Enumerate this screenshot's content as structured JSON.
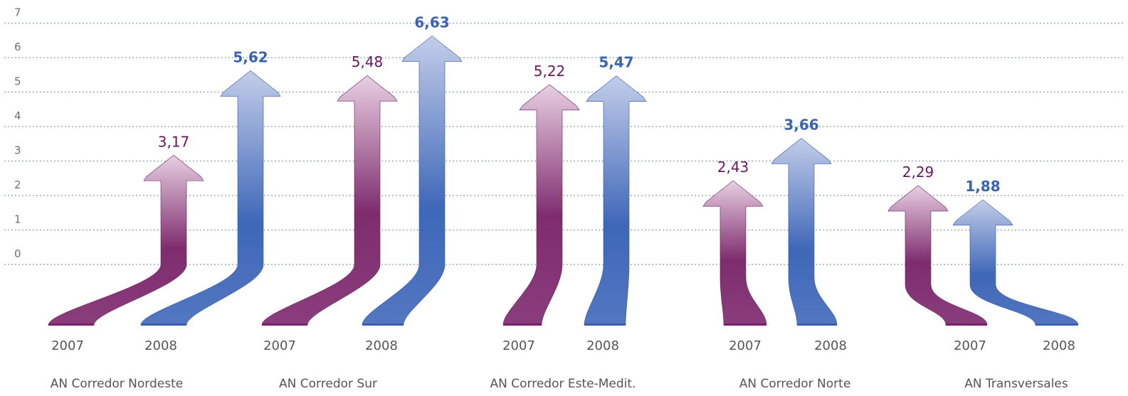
{
  "chart_data": {
    "type": "bar",
    "categories": [
      "AN Corredor Nordeste",
      "AN Corredor Sur",
      "AN Corredor Este-Medit.",
      "AN Corredor Norte",
      "AN Transversales"
    ],
    "series": [
      {
        "name": "2007",
        "values": [
          3.17,
          5.48,
          5.22,
          2.43,
          2.29
        ],
        "labels": [
          "3,17",
          "5,48",
          "5,22",
          "2,43",
          "2,29"
        ]
      },
      {
        "name": "2008",
        "values": [
          5.62,
          6.63,
          5.47,
          3.66,
          1.88
        ],
        "labels": [
          "5,62",
          "6,63",
          "5,47",
          "3,66",
          "1,88"
        ]
      }
    ],
    "y_ticks": [
      "0",
      "1",
      "2",
      "3",
      "4",
      "5",
      "6",
      "7"
    ],
    "ylim": [
      0,
      7
    ],
    "grid": true,
    "legend": "none",
    "colors": {
      "2007": "#7a2a6a",
      "2008": "#3f66b5",
      "label_2007": "#6a1560",
      "label_2008": "#3a64b0"
    }
  }
}
